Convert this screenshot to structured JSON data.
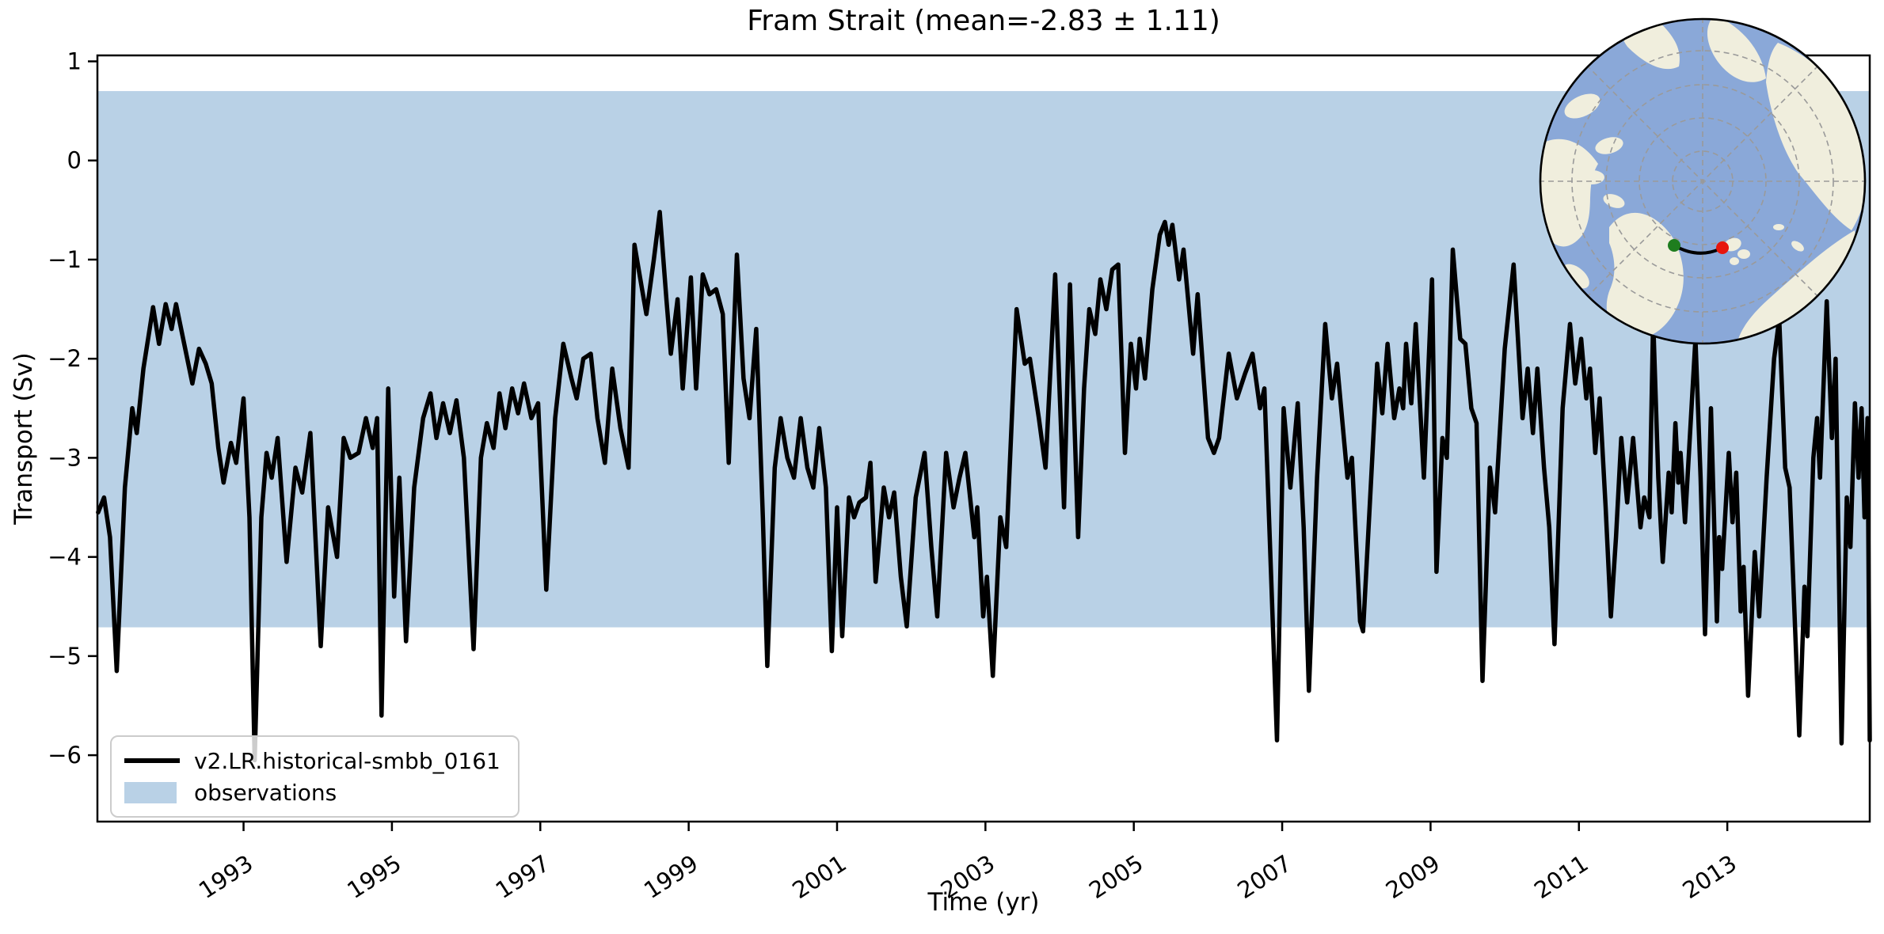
{
  "title": "Fram Strait (mean=-2.83 ± 1.11)",
  "colors": {
    "line": "#000000",
    "observations_band": "#b9d1e6",
    "spine": "#000000",
    "legend_border": "#cccccc",
    "map_ocean": "#8aa8d8",
    "map_land": "#f0eedd",
    "map_graticule": "#9a9a9a",
    "map_border": "#000000",
    "map_transect": "#000000",
    "map_start_dot": "#1e7d1e",
    "map_end_dot": "#e8160c"
  },
  "legend": {
    "series_label": "v2.LR.historical-smbb_0161",
    "band_label": "observations"
  },
  "chart_data": {
    "type": "line",
    "title": "Fram Strait (mean=-2.83 ± 1.11)",
    "xlabel": "Time (yr)",
    "ylabel": "Transport (Sv)",
    "mean": -2.83,
    "std": 1.11,
    "xlim": [
      1991.03,
      2014.92
    ],
    "ylim": [
      -6.67,
      1.06
    ],
    "x_ticks": [
      1993,
      1995,
      1997,
      1999,
      2001,
      2003,
      2005,
      2007,
      2009,
      2011,
      2013
    ],
    "y_ticks": [
      1,
      0,
      -1,
      -2,
      -3,
      -4,
      -5,
      -6
    ],
    "grid": false,
    "legend_position": "lower left",
    "observations_band": {
      "label": "observations",
      "low": -4.71,
      "high": 0.7
    },
    "series": [
      {
        "name": "v2.LR.historical-smbb_0161",
        "color": "#000000",
        "points": [
          [
            1991.04,
            -3.55
          ],
          [
            1991.12,
            -3.4
          ],
          [
            1991.2,
            -3.8
          ],
          [
            1991.29,
            -5.15
          ],
          [
            1991.4,
            -3.3
          ],
          [
            1991.5,
            -2.5
          ],
          [
            1991.56,
            -2.75
          ],
          [
            1991.65,
            -2.1
          ],
          [
            1991.78,
            -1.48
          ],
          [
            1991.86,
            -1.85
          ],
          [
            1991.95,
            -1.45
          ],
          [
            1992.03,
            -1.7
          ],
          [
            1992.09,
            -1.45
          ],
          [
            1992.2,
            -1.85
          ],
          [
            1992.31,
            -2.25
          ],
          [
            1992.4,
            -1.9
          ],
          [
            1992.49,
            -2.05
          ],
          [
            1992.57,
            -2.25
          ],
          [
            1992.66,
            -2.9
          ],
          [
            1992.73,
            -3.25
          ],
          [
            1992.83,
            -2.85
          ],
          [
            1992.9,
            -3.05
          ],
          [
            1993.0,
            -2.4
          ],
          [
            1993.08,
            -3.6
          ],
          [
            1993.15,
            -6.05
          ],
          [
            1993.24,
            -3.6
          ],
          [
            1993.31,
            -2.95
          ],
          [
            1993.38,
            -3.2
          ],
          [
            1993.46,
            -2.8
          ],
          [
            1993.58,
            -4.05
          ],
          [
            1993.7,
            -3.1
          ],
          [
            1993.79,
            -3.35
          ],
          [
            1993.9,
            -2.75
          ],
          [
            1994.04,
            -4.9
          ],
          [
            1994.14,
            -3.5
          ],
          [
            1994.26,
            -4.0
          ],
          [
            1994.35,
            -2.8
          ],
          [
            1994.44,
            -3.0
          ],
          [
            1994.55,
            -2.95
          ],
          [
            1994.65,
            -2.6
          ],
          [
            1994.74,
            -2.9
          ],
          [
            1994.8,
            -2.6
          ],
          [
            1994.86,
            -5.6
          ],
          [
            1994.95,
            -2.3
          ],
          [
            1995.03,
            -4.4
          ],
          [
            1995.1,
            -3.2
          ],
          [
            1995.19,
            -4.85
          ],
          [
            1995.3,
            -3.3
          ],
          [
            1995.42,
            -2.6
          ],
          [
            1995.52,
            -2.35
          ],
          [
            1995.6,
            -2.8
          ],
          [
            1995.69,
            -2.45
          ],
          [
            1995.78,
            -2.75
          ],
          [
            1995.87,
            -2.42
          ],
          [
            1995.97,
            -3.0
          ],
          [
            1996.1,
            -4.93
          ],
          [
            1996.2,
            -3.0
          ],
          [
            1996.28,
            -2.65
          ],
          [
            1996.37,
            -2.9
          ],
          [
            1996.45,
            -2.35
          ],
          [
            1996.53,
            -2.7
          ],
          [
            1996.62,
            -2.3
          ],
          [
            1996.7,
            -2.55
          ],
          [
            1996.78,
            -2.25
          ],
          [
            1996.88,
            -2.6
          ],
          [
            1996.97,
            -2.45
          ],
          [
            1997.08,
            -4.33
          ],
          [
            1997.2,
            -2.6
          ],
          [
            1997.31,
            -1.85
          ],
          [
            1997.42,
            -2.2
          ],
          [
            1997.49,
            -2.4
          ],
          [
            1997.58,
            -2.0
          ],
          [
            1997.68,
            -1.95
          ],
          [
            1997.77,
            -2.6
          ],
          [
            1997.87,
            -3.05
          ],
          [
            1997.97,
            -2.1
          ],
          [
            1998.08,
            -2.7
          ],
          [
            1998.19,
            -3.1
          ],
          [
            1998.27,
            -0.85
          ],
          [
            1998.36,
            -1.25
          ],
          [
            1998.43,
            -1.55
          ],
          [
            1998.53,
            -1.0
          ],
          [
            1998.61,
            -0.52
          ],
          [
            1998.7,
            -1.4
          ],
          [
            1998.76,
            -1.95
          ],
          [
            1998.85,
            -1.4
          ],
          [
            1998.92,
            -2.3
          ],
          [
            1999.03,
            -1.18
          ],
          [
            1999.1,
            -2.3
          ],
          [
            1999.19,
            -1.15
          ],
          [
            1999.28,
            -1.35
          ],
          [
            1999.37,
            -1.3
          ],
          [
            1999.46,
            -1.55
          ],
          [
            1999.54,
            -3.05
          ],
          [
            1999.65,
            -0.95
          ],
          [
            1999.74,
            -2.2
          ],
          [
            1999.82,
            -2.6
          ],
          [
            1999.91,
            -1.7
          ],
          [
            2000.0,
            -3.6
          ],
          [
            2000.06,
            -5.1
          ],
          [
            2000.16,
            -3.1
          ],
          [
            2000.24,
            -2.6
          ],
          [
            2000.33,
            -3.0
          ],
          [
            2000.42,
            -3.2
          ],
          [
            2000.51,
            -2.6
          ],
          [
            2000.6,
            -3.1
          ],
          [
            2000.68,
            -3.3
          ],
          [
            2000.76,
            -2.7
          ],
          [
            2000.85,
            -3.3
          ],
          [
            2000.93,
            -4.95
          ],
          [
            2001.0,
            -3.5
          ],
          [
            2001.07,
            -4.8
          ],
          [
            2001.16,
            -3.4
          ],
          [
            2001.23,
            -3.6
          ],
          [
            2001.3,
            -3.45
          ],
          [
            2001.39,
            -3.4
          ],
          [
            2001.45,
            -3.05
          ],
          [
            2001.52,
            -4.25
          ],
          [
            2001.63,
            -3.3
          ],
          [
            2001.7,
            -3.6
          ],
          [
            2001.77,
            -3.35
          ],
          [
            2001.86,
            -4.2
          ],
          [
            2001.94,
            -4.7
          ],
          [
            2002.06,
            -3.4
          ],
          [
            2002.18,
            -2.95
          ],
          [
            2002.27,
            -3.9
          ],
          [
            2002.35,
            -4.6
          ],
          [
            2002.47,
            -2.95
          ],
          [
            2002.57,
            -3.5
          ],
          [
            2002.65,
            -3.2
          ],
          [
            2002.73,
            -2.95
          ],
          [
            2002.85,
            -3.8
          ],
          [
            2002.89,
            -3.5
          ],
          [
            2002.97,
            -4.6
          ],
          [
            2003.02,
            -4.2
          ],
          [
            2003.1,
            -5.2
          ],
          [
            2003.2,
            -3.6
          ],
          [
            2003.28,
            -3.9
          ],
          [
            2003.42,
            -1.5
          ],
          [
            2003.53,
            -2.05
          ],
          [
            2003.6,
            -2.0
          ],
          [
            2003.72,
            -2.6
          ],
          [
            2003.81,
            -3.1
          ],
          [
            2003.94,
            -1.15
          ],
          [
            2004.06,
            -3.5
          ],
          [
            2004.14,
            -1.25
          ],
          [
            2004.25,
            -3.8
          ],
          [
            2004.33,
            -2.3
          ],
          [
            2004.4,
            -1.5
          ],
          [
            2004.48,
            -1.75
          ],
          [
            2004.55,
            -1.2
          ],
          [
            2004.63,
            -1.5
          ],
          [
            2004.71,
            -1.1
          ],
          [
            2004.79,
            -1.05
          ],
          [
            2004.88,
            -2.95
          ],
          [
            2004.96,
            -1.85
          ],
          [
            2005.03,
            -2.3
          ],
          [
            2005.08,
            -1.8
          ],
          [
            2005.15,
            -2.2
          ],
          [
            2005.25,
            -1.3
          ],
          [
            2005.35,
            -0.75
          ],
          [
            2005.42,
            -0.62
          ],
          [
            2005.47,
            -0.85
          ],
          [
            2005.52,
            -0.65
          ],
          [
            2005.61,
            -1.2
          ],
          [
            2005.67,
            -0.9
          ],
          [
            2005.8,
            -1.95
          ],
          [
            2005.86,
            -1.35
          ],
          [
            2006.0,
            -2.8
          ],
          [
            2006.08,
            -2.95
          ],
          [
            2006.15,
            -2.8
          ],
          [
            2006.28,
            -1.95
          ],
          [
            2006.39,
            -2.4
          ],
          [
            2006.5,
            -2.15
          ],
          [
            2006.6,
            -1.95
          ],
          [
            2006.7,
            -2.5
          ],
          [
            2006.76,
            -2.3
          ],
          [
            2006.93,
            -5.85
          ],
          [
            2007.02,
            -2.5
          ],
          [
            2007.11,
            -3.3
          ],
          [
            2007.21,
            -2.45
          ],
          [
            2007.29,
            -3.7
          ],
          [
            2007.36,
            -5.35
          ],
          [
            2007.47,
            -3.2
          ],
          [
            2007.58,
            -1.65
          ],
          [
            2007.67,
            -2.4
          ],
          [
            2007.74,
            -2.05
          ],
          [
            2007.88,
            -3.2
          ],
          [
            2007.94,
            -3.0
          ],
          [
            2008.05,
            -4.65
          ],
          [
            2008.09,
            -4.75
          ],
          [
            2008.2,
            -3.2
          ],
          [
            2008.28,
            -2.05
          ],
          [
            2008.35,
            -2.55
          ],
          [
            2008.42,
            -1.85
          ],
          [
            2008.51,
            -2.6
          ],
          [
            2008.58,
            -2.3
          ],
          [
            2008.63,
            -2.5
          ],
          [
            2008.67,
            -1.85
          ],
          [
            2008.74,
            -2.45
          ],
          [
            2008.8,
            -1.65
          ],
          [
            2008.91,
            -3.2
          ],
          [
            2009.02,
            -1.2
          ],
          [
            2009.08,
            -4.15
          ],
          [
            2009.16,
            -2.8
          ],
          [
            2009.22,
            -3.0
          ],
          [
            2009.3,
            -0.9
          ],
          [
            2009.4,
            -1.8
          ],
          [
            2009.47,
            -1.85
          ],
          [
            2009.55,
            -2.5
          ],
          [
            2009.62,
            -2.65
          ],
          [
            2009.7,
            -5.25
          ],
          [
            2009.8,
            -3.1
          ],
          [
            2009.87,
            -3.55
          ],
          [
            2010.0,
            -1.9
          ],
          [
            2010.12,
            -1.05
          ],
          [
            2010.24,
            -2.6
          ],
          [
            2010.31,
            -2.1
          ],
          [
            2010.38,
            -2.75
          ],
          [
            2010.44,
            -2.1
          ],
          [
            2010.53,
            -3.1
          ],
          [
            2010.6,
            -3.7
          ],
          [
            2010.67,
            -4.88
          ],
          [
            2010.78,
            -2.5
          ],
          [
            2010.88,
            -1.65
          ],
          [
            2010.95,
            -2.25
          ],
          [
            2011.03,
            -1.8
          ],
          [
            2011.1,
            -2.4
          ],
          [
            2011.15,
            -2.1
          ],
          [
            2011.22,
            -2.95
          ],
          [
            2011.28,
            -2.4
          ],
          [
            2011.36,
            -3.5
          ],
          [
            2011.43,
            -4.6
          ],
          [
            2011.5,
            -3.8
          ],
          [
            2011.57,
            -2.8
          ],
          [
            2011.65,
            -3.45
          ],
          [
            2011.73,
            -2.8
          ],
          [
            2011.83,
            -3.7
          ],
          [
            2011.88,
            -3.4
          ],
          [
            2011.95,
            -3.6
          ],
          [
            2012.0,
            -1.6
          ],
          [
            2012.07,
            -3.2
          ],
          [
            2012.13,
            -4.05
          ],
          [
            2012.21,
            -3.15
          ],
          [
            2012.25,
            -3.55
          ],
          [
            2012.3,
            -2.65
          ],
          [
            2012.34,
            -3.25
          ],
          [
            2012.37,
            -2.95
          ],
          [
            2012.43,
            -3.65
          ],
          [
            2012.57,
            -1.8
          ],
          [
            2012.64,
            -3.2
          ],
          [
            2012.7,
            -4.78
          ],
          [
            2012.78,
            -2.5
          ],
          [
            2012.86,
            -4.65
          ],
          [
            2012.89,
            -3.8
          ],
          [
            2012.93,
            -4.12
          ],
          [
            2013.02,
            -2.95
          ],
          [
            2013.07,
            -3.65
          ],
          [
            2013.12,
            -3.15
          ],
          [
            2013.18,
            -4.55
          ],
          [
            2013.22,
            -4.1
          ],
          [
            2013.28,
            -5.4
          ],
          [
            2013.37,
            -3.95
          ],
          [
            2013.43,
            -4.6
          ],
          [
            2013.53,
            -3.2
          ],
          [
            2013.63,
            -2.0
          ],
          [
            2013.7,
            -1.6
          ],
          [
            2013.78,
            -3.1
          ],
          [
            2013.84,
            -3.3
          ],
          [
            2013.97,
            -5.8
          ],
          [
            2014.04,
            -4.3
          ],
          [
            2014.08,
            -4.8
          ],
          [
            2014.16,
            -3.0
          ],
          [
            2014.21,
            -2.6
          ],
          [
            2014.25,
            -3.2
          ],
          [
            2014.34,
            -1.42
          ],
          [
            2014.41,
            -2.8
          ],
          [
            2014.46,
            -2.0
          ],
          [
            2014.54,
            -5.88
          ],
          [
            2014.61,
            -3.4
          ],
          [
            2014.66,
            -3.9
          ],
          [
            2014.72,
            -2.45
          ],
          [
            2014.77,
            -3.2
          ],
          [
            2014.81,
            -2.5
          ],
          [
            2014.85,
            -3.6
          ],
          [
            2014.89,
            -2.6
          ],
          [
            2014.92,
            -5.85
          ]
        ]
      }
    ]
  },
  "inset_map": {
    "projection": "north-polar",
    "start_dot": "green",
    "end_dot": "red"
  }
}
